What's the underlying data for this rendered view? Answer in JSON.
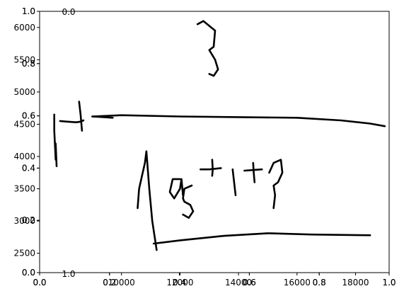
{
  "chart_data": [
    {
      "type": "line",
      "title": "",
      "xlabel": "",
      "ylabel": "",
      "xlim": [
        7200,
        19150
      ],
      "ylim": [
        2200,
        6250
      ],
      "x_ticks": [
        "10000",
        "12000",
        "14000",
        "16000",
        "18000"
      ],
      "y_ticks": [
        "2500",
        "3000",
        "3500",
        "4000",
        "4500",
        "5000",
        "5500",
        "6000"
      ],
      "grid": false,
      "strokes": [
        {
          "name": "digit-3",
          "x": [
            12600,
            12800,
            13200,
            13150,
            13000,
            13200,
            13300,
            13150,
            13000
          ],
          "y": [
            6050,
            6100,
            5950,
            5700,
            5650,
            5500,
            5350,
            5250,
            5280
          ]
        },
        {
          "name": "plus-left-horizontal",
          "x": [
            7900,
            8150,
            8450,
            8600,
            8700
          ],
          "y": [
            4550,
            4540,
            4530,
            4540,
            4560
          ]
        },
        {
          "name": "plus-left-vertical",
          "x": [
            8550,
            8600,
            8650
          ],
          "y": [
            4850,
            4650,
            4400
          ]
        },
        {
          "name": "left-mark-vertical",
          "x": [
            7700,
            7700,
            7750
          ],
          "y": [
            4650,
            4400,
            3950
          ]
        },
        {
          "name": "left-mark-tail",
          "x": [
            7750,
            7780
          ],
          "y": [
            4200,
            3850
          ]
        },
        {
          "name": "fraction-bar",
          "x": [
            9000,
            10000,
            12000,
            14000,
            16000,
            17500,
            18500,
            19000
          ],
          "y": [
            4620,
            4640,
            4620,
            4610,
            4600,
            4560,
            4510,
            4470
          ]
        },
        {
          "name": "fraction-bar-start",
          "x": [
            9000,
            9400,
            9700
          ],
          "y": [
            4620,
            4610,
            4600
          ]
        },
        {
          "name": "radical-sign",
          "x": [
            10550,
            10600,
            10700,
            10800,
            10850,
            10950,
            11050,
            11200
          ],
          "y": [
            3200,
            3500,
            3700,
            3900,
            4080,
            3500,
            3000,
            2550
          ]
        },
        {
          "name": "radical-bar",
          "x": [
            11100,
            12000,
            13500,
            15000,
            16500,
            18500
          ],
          "y": [
            2650,
            2700,
            2770,
            2810,
            2790,
            2780
          ]
        },
        {
          "name": "letter-a",
          "x": [
            12000,
            11750,
            11650,
            11800,
            12000,
            12050,
            12100
          ],
          "y": [
            3650,
            3650,
            3450,
            3350,
            3500,
            3650,
            3400
          ]
        },
        {
          "name": "exponent-5",
          "x": [
            12400,
            12150,
            12100,
            12150,
            12350,
            12450,
            12300,
            12100
          ],
          "y": [
            3550,
            3500,
            3350,
            3300,
            3250,
            3150,
            3050,
            3100
          ]
        },
        {
          "name": "plus-middle-horizontal",
          "x": [
            12700,
            13000,
            13400
          ],
          "y": [
            3800,
            3800,
            3820
          ]
        },
        {
          "name": "plus-middle-vertical",
          "x": [
            13100,
            13120,
            13100
          ],
          "y": [
            3950,
            3800,
            3700
          ]
        },
        {
          "name": "digit-1",
          "x": [
            13800,
            13850,
            13900
          ],
          "y": [
            3800,
            3600,
            3400
          ]
        },
        {
          "name": "plus-right-horizontal",
          "x": [
            14200,
            14500,
            14800
          ],
          "y": [
            3780,
            3790,
            3800
          ]
        },
        {
          "name": "plus-right-vertical",
          "x": [
            14500,
            14520,
            14550
          ],
          "y": [
            3900,
            3750,
            3600
          ]
        },
        {
          "name": "letter-b",
          "x": [
            15050,
            15200,
            15450,
            15500,
            15350,
            15200,
            15250,
            15200
          ],
          "y": [
            3750,
            3900,
            3950,
            3750,
            3600,
            3550,
            3400,
            3200
          ]
        }
      ]
    },
    {
      "type": "line",
      "title": "",
      "xlim": [
        0,
        1
      ],
      "ylim": [
        0,
        1
      ],
      "x_ticks": [
        "0.0",
        "0.2",
        "0.4",
        "0.6",
        "0.8",
        "1.0"
      ],
      "y_ticks": [
        "0.0",
        "0.2",
        "0.4",
        "0.6",
        "0.8",
        "1.0"
      ],
      "grid": false,
      "series": []
    },
    {
      "type": "line",
      "title": "",
      "xlim": [
        0,
        1
      ],
      "ylim": [
        0,
        1
      ],
      "x_ticks": [
        "0.0",
        "0.2",
        "0.4",
        "0.6",
        "0.8",
        "1.0"
      ],
      "y_ticks": [
        "0.0",
        "0.2",
        "0.4",
        "0.6",
        "0.8",
        "1.0"
      ],
      "grid": false,
      "series": []
    },
    {
      "type": "line",
      "title": "",
      "x_ticks": [
        "0.0",
        "1.0"
      ],
      "y_ticks": [],
      "grid": false,
      "series": []
    }
  ]
}
